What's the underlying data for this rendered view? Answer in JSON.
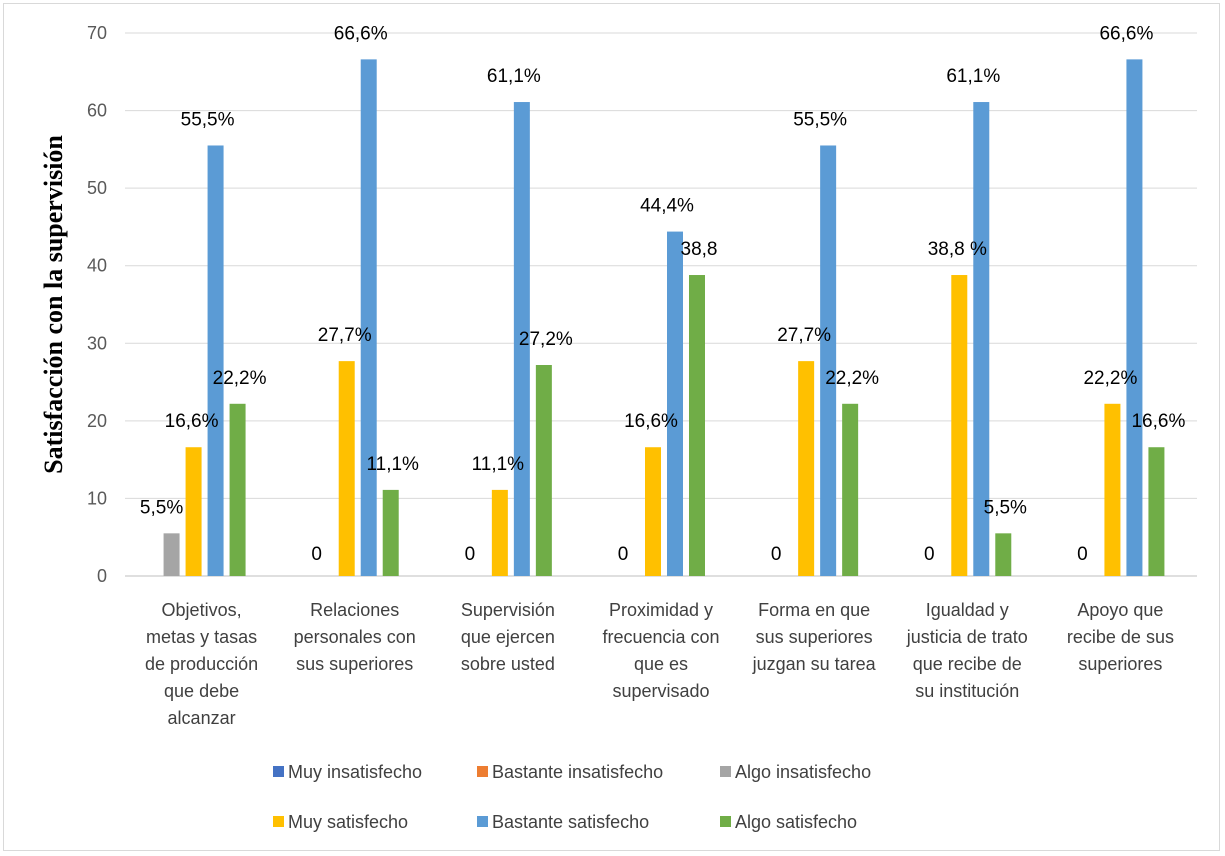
{
  "chart_data": {
    "type": "bar",
    "title": "",
    "xlabel": "",
    "ylabel": "Satisfacción con la supervisión",
    "ylim": [
      0,
      70
    ],
    "yticks": [
      0,
      10,
      20,
      30,
      40,
      50,
      60,
      70
    ],
    "grid": true,
    "legend_position": "bottom",
    "categories": [
      [
        "Objetivos,",
        "metas y tasas",
        "de producción",
        "que debe",
        "alcanzar"
      ],
      [
        "Relaciones",
        "personales con",
        "sus superiores"
      ],
      [
        "Supervisión",
        "que ejercen",
        "sobre usted"
      ],
      [
        "Proximidad y",
        "frecuencia con",
        "que es",
        "supervisado"
      ],
      [
        "Forma en que",
        "sus superiores",
        "juzgan su tarea"
      ],
      [
        "Igualdad y",
        "justicia de trato",
        "que recibe de",
        "su institución"
      ],
      [
        "Apoyo que",
        "recibe de sus",
        "superiores"
      ]
    ],
    "series": [
      {
        "name": "Muy insatisfecho",
        "color": "#4472c4",
        "values": [
          null,
          null,
          null,
          null,
          null,
          null,
          null
        ],
        "labels": [
          "",
          "",
          "",
          "",
          "",
          "",
          ""
        ]
      },
      {
        "name": "Bastante insatisfecho",
        "color": "#ed7d31",
        "values": [
          null,
          null,
          null,
          null,
          null,
          null,
          null
        ],
        "labels": [
          "",
          "",
          "",
          "",
          "",
          "",
          ""
        ]
      },
      {
        "name": "Algo insatisfecho",
        "color": "#a5a5a5",
        "values": [
          5.5,
          0,
          0,
          0,
          0,
          0,
          0
        ],
        "labels": [
          "5,5%",
          "0",
          "0",
          "0",
          "0",
          "0",
          "0"
        ]
      },
      {
        "name": "Muy satisfecho",
        "color": "#ffc000",
        "values": [
          16.6,
          27.7,
          11.1,
          16.6,
          27.7,
          38.8,
          22.2
        ],
        "labels": [
          "16,6%",
          "27,7%",
          "11,1%",
          "16,6%",
          "27,7%",
          "38,8 %",
          "22,2%"
        ]
      },
      {
        "name": "Bastante satisfecho",
        "color": "#5b9bd5",
        "values": [
          55.5,
          66.6,
          61.1,
          44.4,
          55.5,
          61.1,
          66.6
        ],
        "labels": [
          "55,5%",
          "66,6%",
          "61,1%",
          "44,4%",
          "55,5%",
          "61,1%",
          "66,6%"
        ]
      },
      {
        "name": "Algo satisfecho",
        "color": "#70ad47",
        "values": [
          22.2,
          11.1,
          27.2,
          38.8,
          22.2,
          5.5,
          16.6
        ],
        "labels": [
          "22,2%",
          "11,1%",
          "27,2%",
          "38,8",
          "22,2%",
          "5,5%",
          "16,6%"
        ]
      }
    ]
  }
}
